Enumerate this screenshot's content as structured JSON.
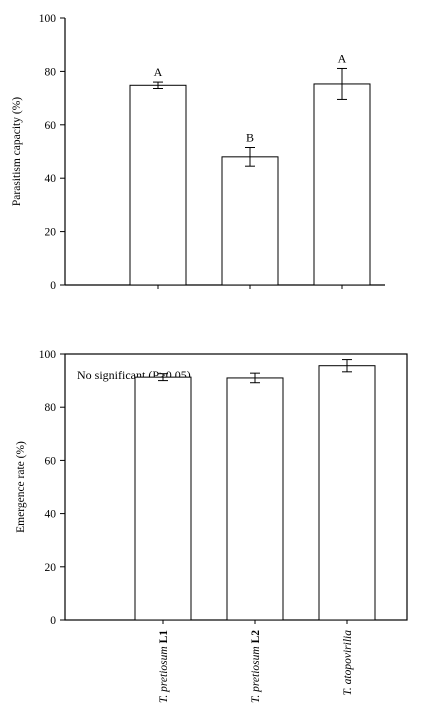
{
  "chart_data": [
    {
      "type": "bar",
      "ylabel": "Parasitism capacity (%)",
      "ylim": [
        0,
        100
      ],
      "yticks": [
        0,
        20,
        40,
        60,
        80,
        100
      ],
      "categories": [
        "T. pretiosum L1",
        "T. pretiosum L2",
        "T. atopovirilia"
      ],
      "values": [
        74.8,
        48.0,
        75.3
      ],
      "errors": [
        1.2,
        3.5,
        5.8
      ],
      "letters": [
        "A",
        "B",
        "A"
      ],
      "annotation": ""
    },
    {
      "type": "bar",
      "ylabel": "Emergence rate (%)",
      "ylim": [
        0,
        100
      ],
      "yticks": [
        0,
        20,
        40,
        60,
        80,
        100
      ],
      "categories": [
        "T. pretiosum L1",
        "T. pretiosum L2",
        "T. atopovirilia"
      ],
      "values": [
        91.3,
        91.0,
        95.6
      ],
      "errors": [
        1.3,
        1.8,
        2.3
      ],
      "letters": [
        "",
        "",
        ""
      ],
      "annotation": "No significant (P>0,05)"
    }
  ],
  "category_labels": [
    {
      "species": "T. pretiosum",
      "suffix": " L1"
    },
    {
      "species": "T. pretiosum",
      "suffix": " L2"
    },
    {
      "species": "T. atopovirilia",
      "suffix": ""
    }
  ]
}
